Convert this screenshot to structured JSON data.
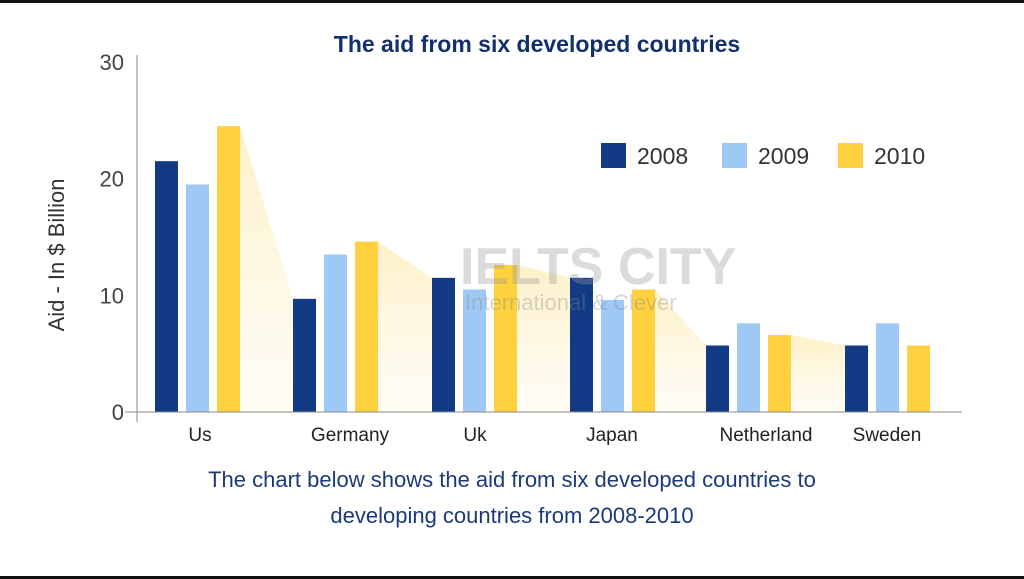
{
  "chart_data": {
    "type": "bar",
    "title": "The aid from six developed countries",
    "ylabel": "Aid - In $ Billion",
    "xlabel": "",
    "ylim": [
      0,
      30
    ],
    "yticks": [
      0,
      10,
      20,
      30
    ],
    "categories": [
      "Us",
      "Germany",
      "Uk",
      "Japan",
      "Netherland",
      "Sweden"
    ],
    "series": [
      {
        "name": "2008",
        "color": "#123a85",
        "values": [
          21.5,
          9.7,
          11.5,
          11.5,
          5.7,
          5.7
        ]
      },
      {
        "name": "2009",
        "color": "#9ec9f5",
        "values": [
          19.5,
          13.5,
          10.5,
          9.6,
          7.6,
          7.6
        ]
      },
      {
        "name": "2010",
        "color": "#fdd23e",
        "values": [
          24.5,
          14.6,
          12.6,
          10.5,
          6.6,
          5.7
        ]
      }
    ],
    "legend": "top-right",
    "grid": false
  },
  "watermark": {
    "line1": "IELTS CITY",
    "line2": "International & Clever"
  },
  "caption": {
    "line1": "The chart below shows the aid from six developed countries to",
    "line2": "developing countries from 2008-2010"
  }
}
